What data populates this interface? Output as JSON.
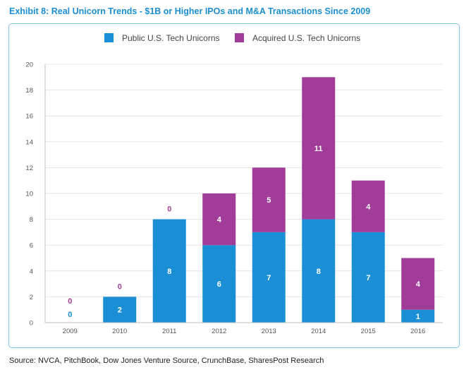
{
  "title": "Exhibit 8: Real Unicorn Trends - $1B or Higher IPOs and M&A Transactions Since 2009",
  "source": "Source: NVCA, PitchBook, Dow Jones Venture Source, CrunchBase, SharesPost Research",
  "colors": {
    "public": "#1a8fd5",
    "acquired": "#a13d98",
    "title": "#1b8fd1"
  },
  "chart_data": {
    "type": "bar",
    "stacked": true,
    "categories": [
      "2009",
      "2010",
      "2011",
      "2012",
      "2013",
      "2014",
      "2015",
      "2016"
    ],
    "series": [
      {
        "name": "Public U.S. Tech Unicorns",
        "values": [
          0,
          2,
          8,
          6,
          7,
          8,
          7,
          1
        ]
      },
      {
        "name": "Acquired U.S. Tech Unicorns",
        "values": [
          0,
          0,
          0,
          4,
          5,
          11,
          4,
          4
        ]
      }
    ],
    "ylim": [
      0,
      20
    ],
    "yticks": [
      "0",
      "2",
      "4",
      "6",
      "8",
      "10",
      "12",
      "14",
      "16",
      "18",
      "20"
    ],
    "grid": true,
    "legend": "top-center"
  }
}
